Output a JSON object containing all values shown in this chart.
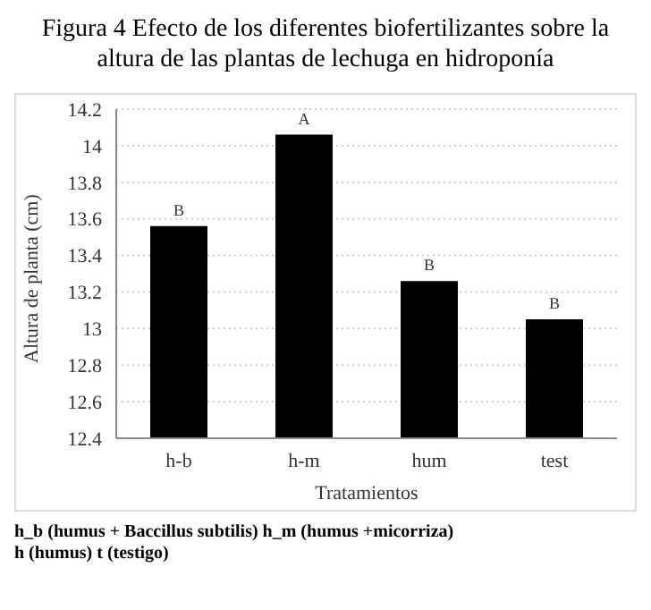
{
  "chart_data": {
    "type": "bar",
    "title": "Figura 4 Efecto de los diferentes biofertilizantes sobre la altura de las plantas de lechuga en hidroponía",
    "xlabel": "Tratamientos",
    "ylabel": "Altura de planta (cm)",
    "categories": [
      "h-b",
      "h-m",
      "hum",
      "test"
    ],
    "values": [
      13.56,
      14.06,
      13.26,
      13.05
    ],
    "color": "#000000",
    "ylim": [
      12.4,
      14.2
    ],
    "yticks": [
      12.4,
      12.6,
      12.8,
      13,
      13.2,
      13.4,
      13.6,
      13.8,
      14,
      14.2
    ],
    "grid": "y",
    "annotations": [
      {
        "text": "B",
        "x": "h-b",
        "y": 13.56
      },
      {
        "text": "A",
        "x": "h-m",
        "y": 14.06
      },
      {
        "text": "B",
        "x": "hum",
        "y": 13.26
      },
      {
        "text": "B",
        "x": "test",
        "y": 13.05
      },
      "h_b  (humus + Baccillus subtilis) h_m  (humus +micorriza)",
      "h (humus) t (testigo)"
    ]
  }
}
